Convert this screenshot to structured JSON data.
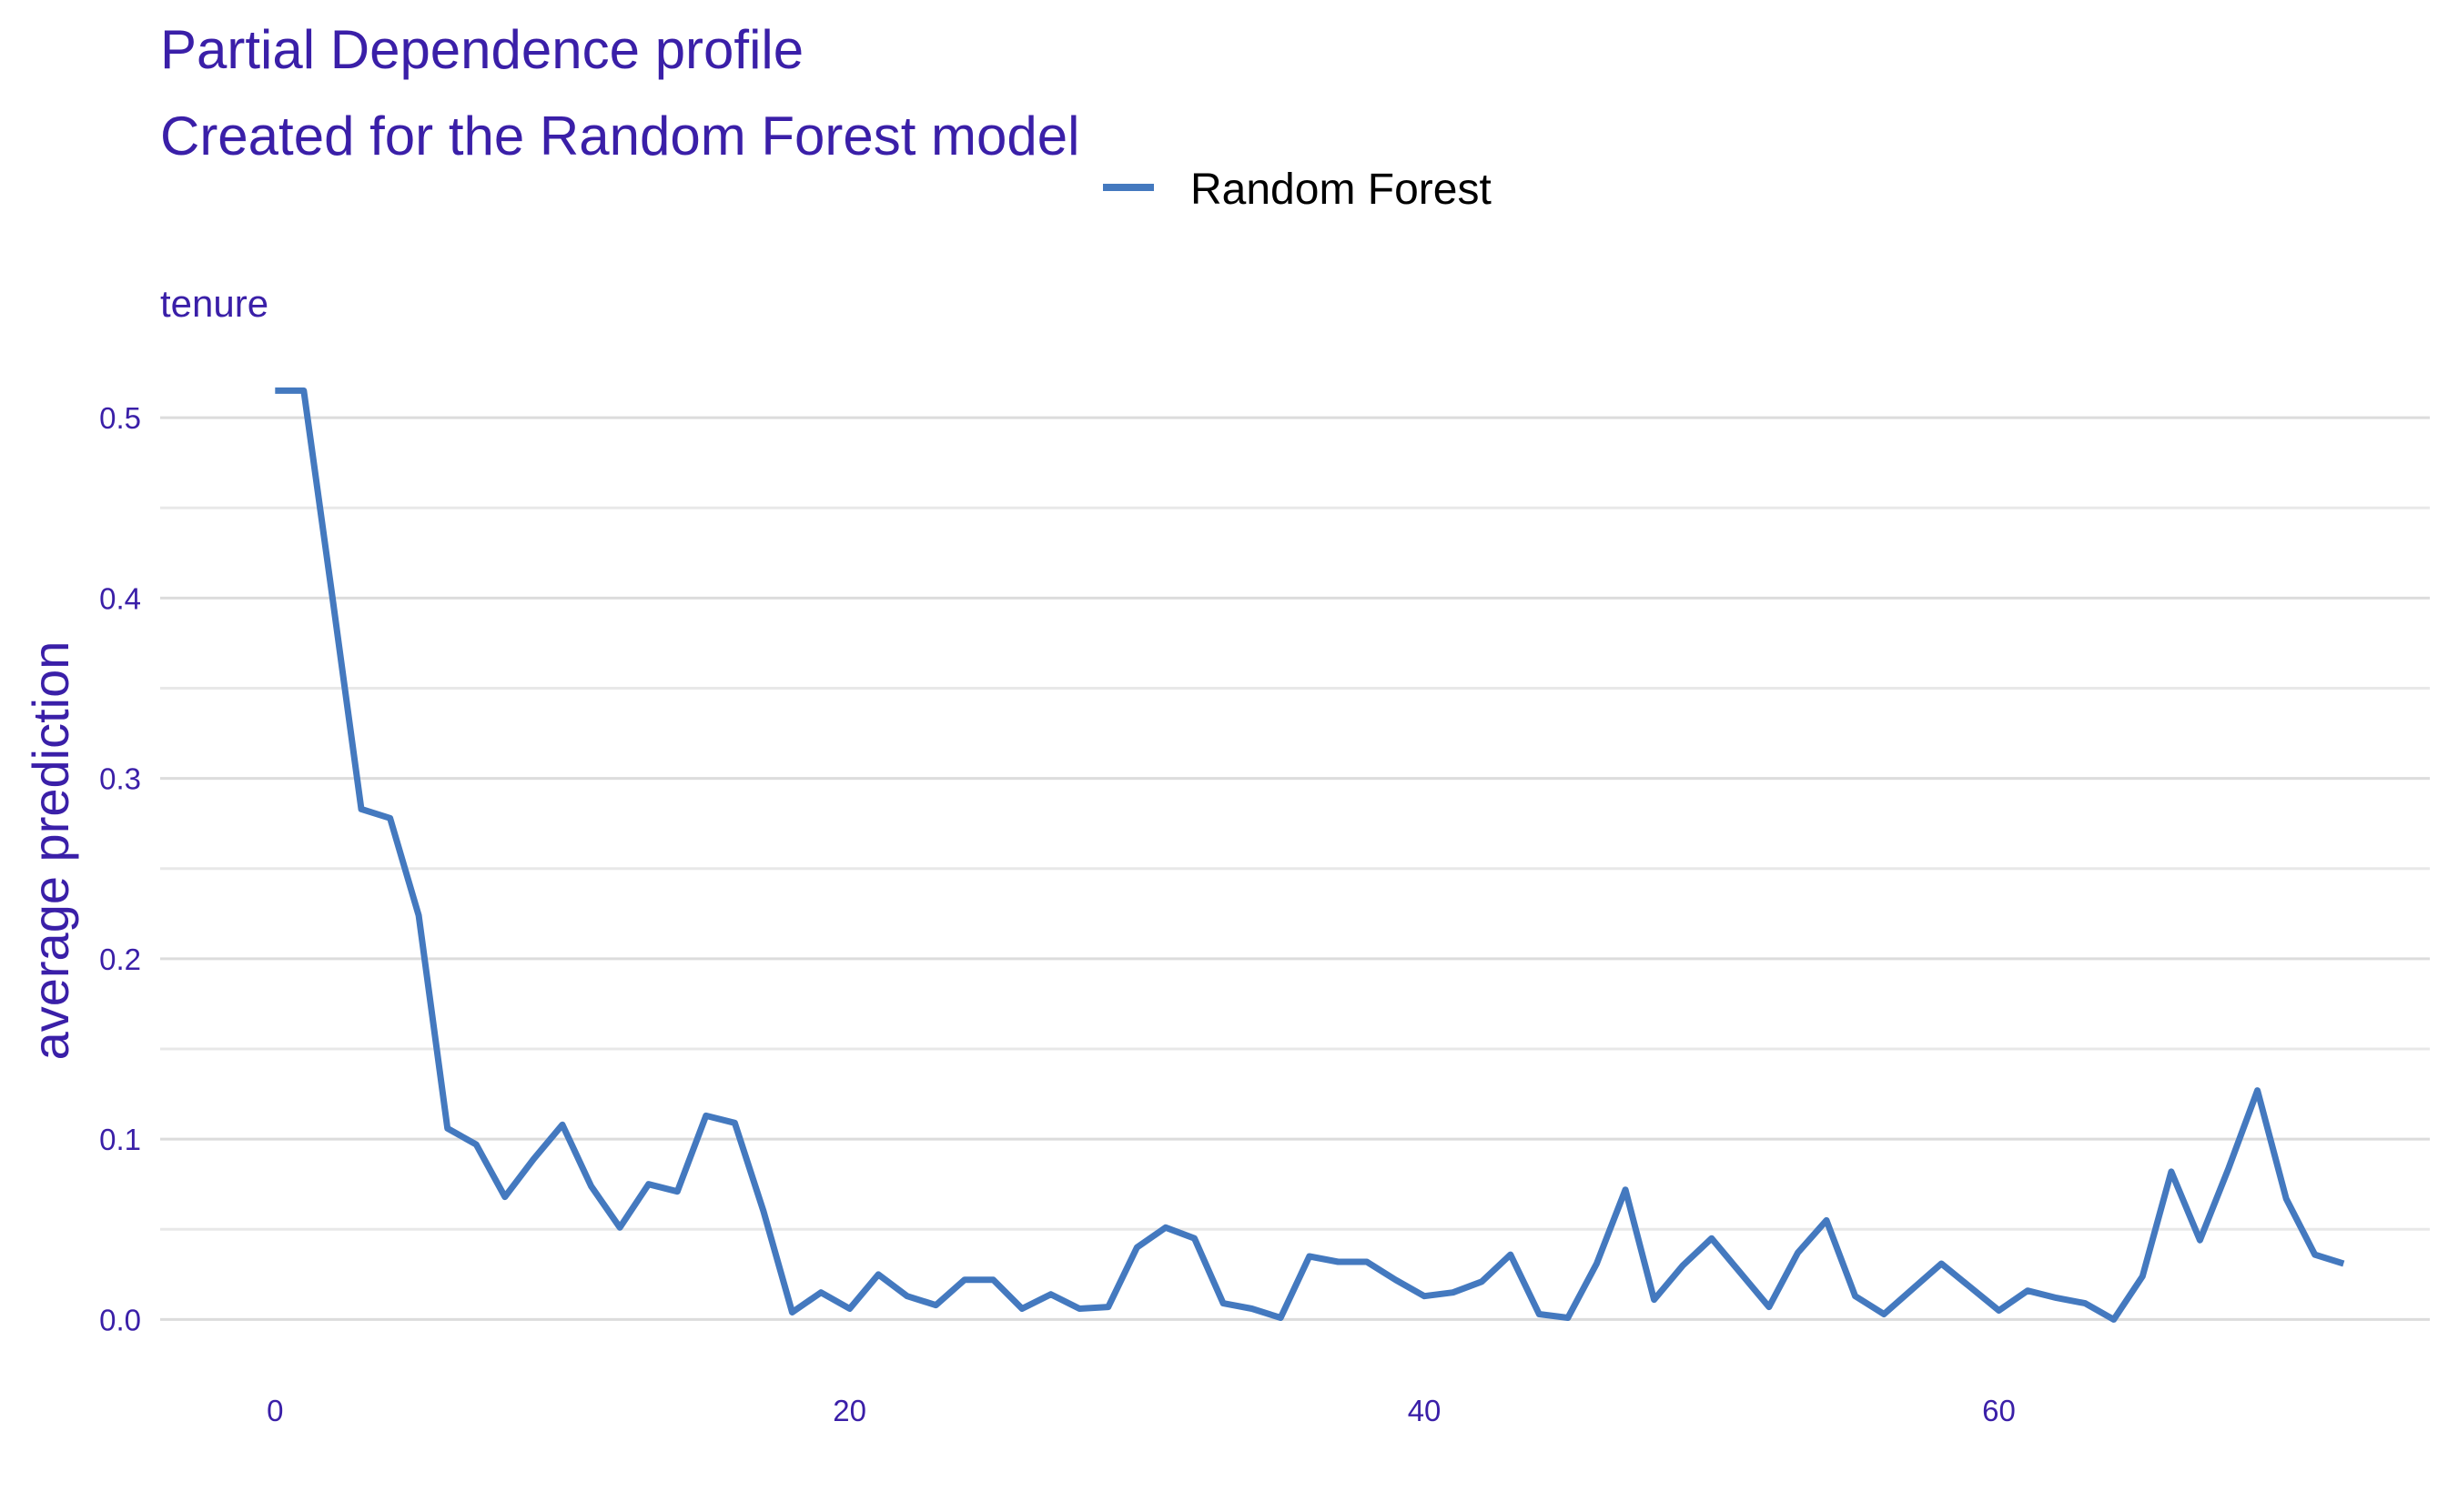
{
  "chart_data": {
    "type": "line",
    "title": "Partial Dependence profile",
    "subtitle": "Created for the Random Forest model",
    "facet_label": "tenure",
    "xlabel": "",
    "ylabel": "average prediction",
    "xlim": [
      -4,
      75
    ],
    "ylim": [
      -0.025,
      0.55
    ],
    "x_ticks": [
      0,
      20,
      40,
      60
    ],
    "y_ticks": [
      0.0,
      0.1,
      0.2,
      0.3,
      0.4,
      0.5
    ],
    "x_tick_labels": [
      "0",
      "20",
      "40",
      "60"
    ],
    "y_tick_labels": [
      "0.0",
      "0.1",
      "0.2",
      "0.3",
      "0.4",
      "0.5"
    ],
    "grid": true,
    "legend_position": "top",
    "series": [
      {
        "name": "Random Forest",
        "color": "#4479bf",
        "x": [
          0,
          1,
          2,
          3,
          4,
          5,
          6,
          7,
          8,
          9,
          10,
          11,
          12,
          13,
          14,
          15,
          16,
          17,
          18,
          19,
          20,
          21,
          22,
          23,
          24,
          25,
          26,
          27,
          28,
          29,
          30,
          31,
          32,
          33,
          34,
          35,
          36,
          37,
          38,
          39,
          40,
          41,
          42,
          43,
          44,
          45,
          46,
          47,
          48,
          49,
          50,
          51,
          52,
          53,
          54,
          55,
          56,
          57,
          58,
          59,
          60,
          61,
          62,
          63,
          64,
          65,
          66,
          67,
          68,
          69,
          70,
          71,
          72
        ],
        "y": [
          0.515,
          0.515,
          0.4,
          0.283,
          0.278,
          0.224,
          0.106,
          0.097,
          0.068,
          0.089,
          0.108,
          0.074,
          0.051,
          0.075,
          0.071,
          0.113,
          0.109,
          0.06,
          0.004,
          0.015,
          0.006,
          0.025,
          0.013,
          0.008,
          0.022,
          0.022,
          0.006,
          0.014,
          0.006,
          0.007,
          0.04,
          0.051,
          0.045,
          0.009,
          0.006,
          0.001,
          0.035,
          0.032,
          0.032,
          0.022,
          0.013,
          0.015,
          0.021,
          0.036,
          0.003,
          0.001,
          0.031,
          0.072,
          0.011,
          0.03,
          0.045,
          0.026,
          0.007,
          0.037,
          0.055,
          0.013,
          0.003,
          0.017,
          0.031,
          0.018,
          0.005,
          0.016,
          0.012,
          0.009,
          0.0,
          0.024,
          0.082,
          0.044,
          0.084,
          0.127,
          0.067,
          0.036,
          0.031
        ]
      }
    ]
  }
}
